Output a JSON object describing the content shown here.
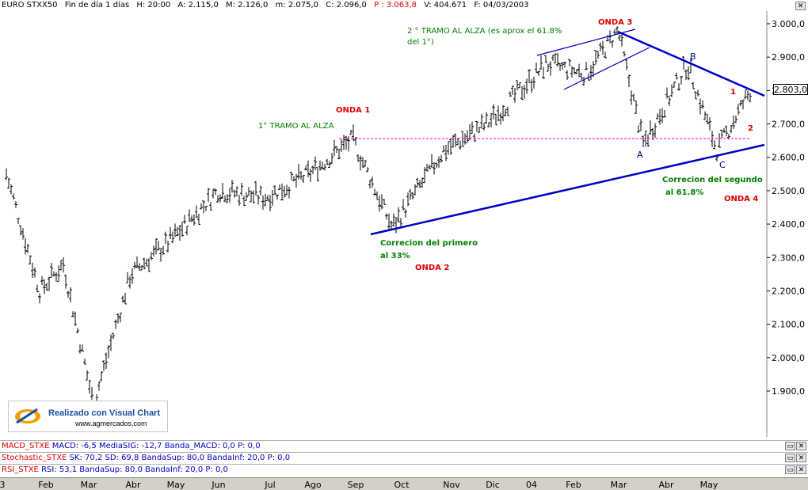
{
  "header": {
    "symbol": "EURO STXX50",
    "period": "Fin de día 1 días",
    "hour": "H: 20:00",
    "a": "A: 2.115,0",
    "m": "M: 2.126,0",
    "low": "m: 2.075,0",
    "c": "C: 2.096,0",
    "p": "P : 3.063,8",
    "v": "V: 404.671",
    "f": "F: 04/03/2003"
  },
  "price_badge": "2.803,0",
  "y_ticks": [
    "3.000,0",
    "2.900,0",
    "2.800,0",
    "2.700,0",
    "2.600,0",
    "2.500,0",
    "2.400,0",
    "2.300,0",
    "2.200,0",
    "2.100,0",
    "2.000,0",
    "1.900,0"
  ],
  "x_ticks": [
    "3",
    "Feb",
    "Mar",
    "Abr",
    "May",
    "Jun",
    "Jul",
    "Ago",
    "Sep",
    "Oct",
    "Nov",
    "Dic",
    "04",
    "Feb",
    "Mar",
    "Abr",
    "May"
  ],
  "annotations": {
    "onda1": "ONDA 1",
    "onda2": "ONDA 2",
    "onda3": "ONDA 3",
    "onda4": "ONDA 4",
    "tramo1": "1° TRAMO AL ALZA",
    "tramo2_l1": "2 ° TRAMO AL ALZA (es aprox el 61.8%",
    "tramo2_l2": "del 1°)",
    "corr1_l1": "Correcion del primero",
    "corr1_l2": "al 33%",
    "corr2_l1": "Correcion del segundo",
    "corr2_l2": "al 61.8%",
    "a": "A",
    "b": "B",
    "c": "C",
    "n1": "1",
    "n2": "2"
  },
  "indicators": {
    "macd": {
      "name": "MACD_STXE",
      "rest": "MACD: -6,5  MediaSIG: -12,7  Banda_MACD: 0,0  P: 0,0"
    },
    "stoch": {
      "name": "Stochastic_STXE",
      "rest": "SK: 70,2  SD: 69,8  BandaSup: 80,0  BandaInf: 20,0  P: 0,0"
    },
    "rsi": {
      "name": "RSI_STXE",
      "rest": "RSI: 53,1  BandaSup: 80,0  BandaInf: 20,0  P: 0,0"
    }
  },
  "logo": {
    "title": "Realizado con Visual Chart",
    "url": "www.agmercados.com"
  },
  "colors": {
    "bars": "#000000",
    "trend": "#0000c8",
    "dashed": "#e000e0",
    "green_text": "#008000",
    "red_text": "#e00000"
  },
  "chart_data": {
    "type": "ohlc",
    "title": "EURO STXX50",
    "ylim": [
      1830,
      3050
    ],
    "y_axis_side": "right",
    "keypoints": [
      [
        "start",
        2550
      ],
      [
        "Feb",
        2200
      ],
      [
        "mid-Feb",
        2280
      ],
      [
        "Mar-low",
        1860
      ],
      [
        "Abr",
        2250
      ],
      [
        "May",
        2350
      ],
      [
        "Jun",
        2500
      ],
      [
        "Jul",
        2480
      ],
      [
        "Ago",
        2550
      ],
      [
        "Sep-high",
        2655
      ],
      [
        "Oct-low",
        2390
      ],
      [
        "Nov",
        2620
      ],
      [
        "Dic",
        2700
      ],
      [
        "Ene",
        2880
      ],
      [
        "Feb-04",
        2850
      ],
      [
        "Mar-04-high",
        2980
      ],
      [
        "Mar-04-low",
        2640
      ],
      [
        "Abr-04-high",
        2880
      ],
      [
        "May-04-low",
        2620
      ],
      [
        "end",
        2803
      ]
    ],
    "trend_lines": [
      {
        "name": "support",
        "from": [
          "Oct",
          2365
        ],
        "to": [
          "end",
          2635
        ]
      },
      {
        "name": "resistance",
        "from": [
          "Mar-04-high",
          2975
        ],
        "to": [
          "end",
          2780
        ]
      }
    ],
    "horizontal_level": 2655
  }
}
